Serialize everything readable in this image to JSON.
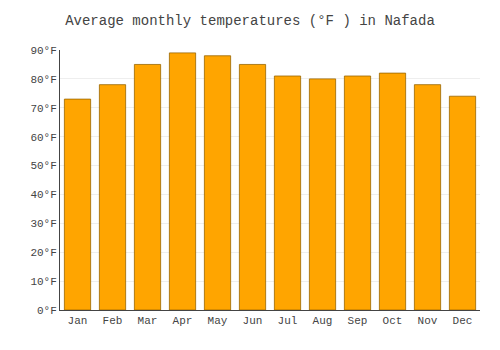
{
  "chart_data": {
    "type": "bar",
    "title": "Average monthly temperatures (°F ) in Nafada",
    "categories": [
      "Jan",
      "Feb",
      "Mar",
      "Apr",
      "May",
      "Jun",
      "Jul",
      "Aug",
      "Sep",
      "Oct",
      "Nov",
      "Dec"
    ],
    "values": [
      73,
      78,
      85,
      89,
      88,
      85,
      81,
      80,
      81,
      82,
      78,
      74
    ],
    "color": "#FFA500",
    "ylim": [
      0,
      90
    ],
    "yticks": [
      {
        "value": 0,
        "label": "0°F"
      },
      {
        "value": 10,
        "label": "10°F"
      },
      {
        "value": 20,
        "label": "20°F"
      },
      {
        "value": 30,
        "label": "30°F"
      },
      {
        "value": 40,
        "label": "40°F"
      },
      {
        "value": 50,
        "label": "50°F"
      },
      {
        "value": 60,
        "label": "60°F"
      },
      {
        "value": 70,
        "label": "70°F"
      },
      {
        "value": 80,
        "label": "80°F"
      },
      {
        "value": 90,
        "label": "90°F"
      }
    ],
    "grid": true
  }
}
